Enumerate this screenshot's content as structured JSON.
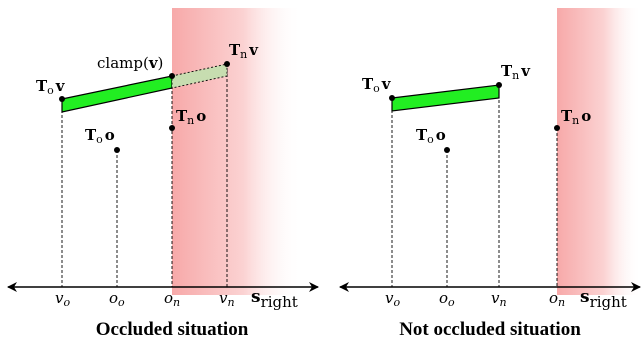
{
  "colors": {
    "occlusion_zone": "#f9b8b8",
    "segment_fill": "#22ee22",
    "clamped_fill": "#c7ddb0",
    "ink": "#000000"
  },
  "panels": [
    {
      "caption": "Occluded situation",
      "labels": {
        "to_v_T": "T",
        "to_v_sub": "o",
        "to_v_var": "v",
        "clamp": "clamp(",
        "clamp_var": "v",
        "clamp_close": ")",
        "tn_v_T": "T",
        "tn_v_sub": "n",
        "tn_v_var": "v",
        "to_o_T": "T",
        "to_o_sub": "o",
        "to_o_var": "o",
        "tn_o_T": "T",
        "tn_o_sub": "n",
        "tn_o_var": "o"
      },
      "axis": {
        "ticks": [
          {
            "main": "v",
            "sub": "o"
          },
          {
            "main": "o",
            "sub": "o"
          },
          {
            "main": "o",
            "sub": "n"
          },
          {
            "main": "v",
            "sub": "n"
          }
        ],
        "label_main": "s",
        "label_sub": "right"
      }
    },
    {
      "caption": "Not occluded situation",
      "labels": {
        "to_v_T": "T",
        "to_v_sub": "o",
        "to_v_var": "v",
        "tn_v_T": "T",
        "tn_v_sub": "n",
        "tn_v_var": "v",
        "to_o_T": "T",
        "to_o_sub": "o",
        "to_o_var": "o",
        "tn_o_T": "T",
        "tn_o_sub": "n",
        "tn_o_var": "o"
      },
      "axis": {
        "ticks": [
          {
            "main": "v",
            "sub": "o"
          },
          {
            "main": "o",
            "sub": "o"
          },
          {
            "main": "v",
            "sub": "n"
          },
          {
            "main": "o",
            "sub": "n"
          }
        ],
        "label_main": "s",
        "label_sub": "right"
      }
    }
  ]
}
